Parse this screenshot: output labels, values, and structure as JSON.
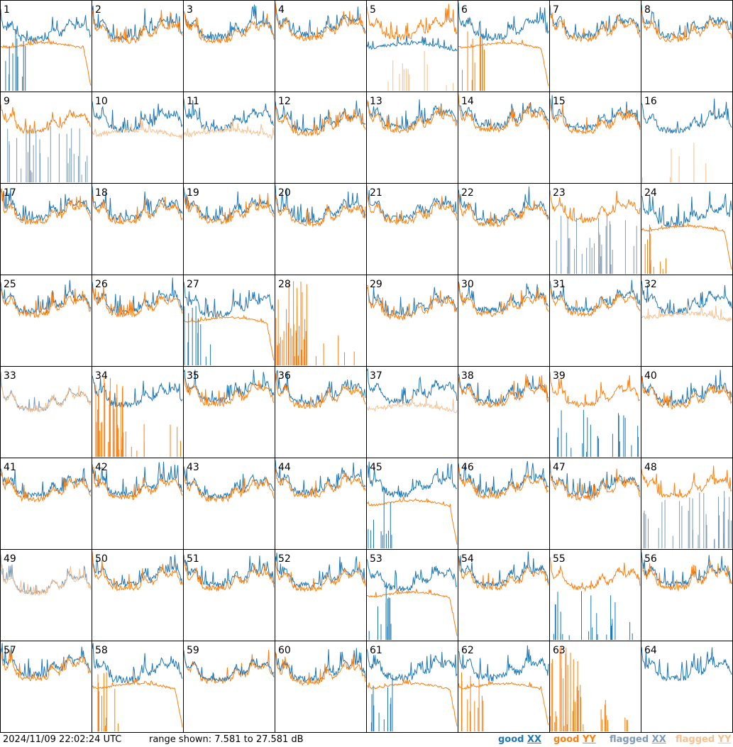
{
  "chart_data": {
    "type": "line",
    "layout": "small-multiples 8x8",
    "panel_labels": [
      "1",
      "2",
      "3",
      "4",
      "5",
      "6",
      "7",
      "8",
      "9",
      "10",
      "11",
      "12",
      "13",
      "14",
      "15",
      "16",
      "17",
      "18",
      "19",
      "20",
      "21",
      "22",
      "23",
      "24",
      "25",
      "26",
      "27",
      "28",
      "29",
      "30",
      "31",
      "32",
      "33",
      "34",
      "35",
      "36",
      "37",
      "38",
      "39",
      "40",
      "41",
      "42",
      "43",
      "44",
      "45",
      "46",
      "47",
      "48",
      "49",
      "50",
      "51",
      "52",
      "53",
      "54",
      "55",
      "56",
      "57",
      "58",
      "59",
      "60",
      "61",
      "62",
      "63",
      "64"
    ],
    "ylim": [
      7.581,
      27.581
    ],
    "yunit": "dB",
    "series": [
      {
        "name": "good XX",
        "color": "#1f77b4"
      },
      {
        "name": "good YY",
        "color": "#ff7f0e"
      },
      {
        "name": "flagged XX",
        "color": "#7f9bb5"
      },
      {
        "name": "flagged YY",
        "color": "#f7c08f"
      }
    ],
    "panel_kinds": [
      "odd1",
      "n",
      "n",
      "n",
      "drop5",
      "odd6",
      "n",
      "n",
      "flagx9",
      "flagy10",
      "flagy11",
      "n",
      "n",
      "n",
      "n",
      "flagy16",
      "n",
      "n",
      "n",
      "n",
      "n",
      "n",
      "flagx23",
      "odd24",
      "n",
      "n",
      "odd27",
      "spike28",
      "n",
      "n",
      "n",
      "flagy32",
      "flagxy33",
      "spike34",
      "n",
      "n",
      "flagy37",
      "n",
      "spikex39",
      "n",
      "n",
      "n",
      "n",
      "n",
      "odd45",
      "n",
      "n",
      "flagx48",
      "flagxy49",
      "n",
      "n",
      "n",
      "odd53",
      "n",
      "spikex55",
      "n",
      "n",
      "odd58",
      "droplast59",
      "n",
      "odd61",
      "odd62",
      "spike63",
      "xonly64"
    ]
  },
  "footer": {
    "timestamp": "2024/11/09 22:02:24 UTC",
    "range_text": "range shown: 7.581 to 27.581 dB",
    "legend": [
      {
        "word": "good ",
        "pol": "XX",
        "color": "#1f77b4"
      },
      {
        "word": "good ",
        "pol": "YY",
        "color": "#ff7f0e"
      },
      {
        "word": "flagged ",
        "pol": "XX",
        "color": "#7f9bb5"
      },
      {
        "word": "flagged ",
        "pol": "YY",
        "color": "#f7c08f"
      }
    ]
  }
}
